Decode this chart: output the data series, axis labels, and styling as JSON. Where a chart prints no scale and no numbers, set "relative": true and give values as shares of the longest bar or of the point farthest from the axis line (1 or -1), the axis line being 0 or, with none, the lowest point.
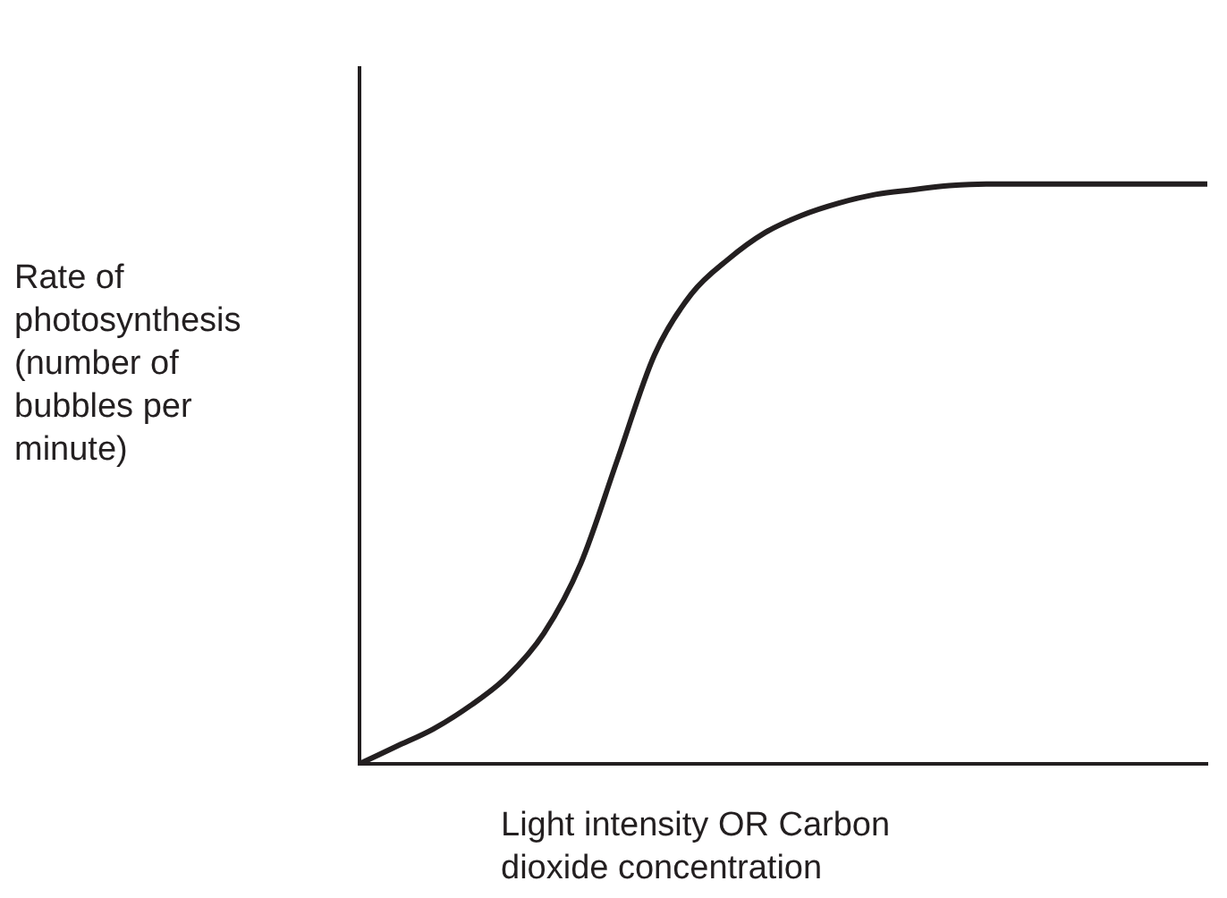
{
  "chart_data": {
    "type": "line",
    "relative": true,
    "xlabel": "Light intensity OR Carbon dioxide concentration",
    "ylabel": "Rate of photosynthesis (number of bubbles per minute)",
    "categories": [
      null,
      null,
      null,
      null,
      null,
      null,
      null,
      null,
      null,
      null,
      null,
      null,
      null,
      null,
      null,
      null,
      null,
      null,
      null,
      null,
      null,
      null,
      null,
      null
    ],
    "series": [
      {
        "color": "#231f20",
        "values": [
          0,
          0.03,
          0.06,
          0.1,
          0.15,
          0.225,
          0.345,
          0.525,
          0.705,
          0.81,
          0.87,
          0.916,
          0.946,
          0.967,
          0.982,
          0.99,
          0.997,
          1,
          1,
          1,
          1,
          1,
          1,
          1
        ]
      }
    ],
    "marker": "none",
    "grid": false,
    "legend": false
  }
}
